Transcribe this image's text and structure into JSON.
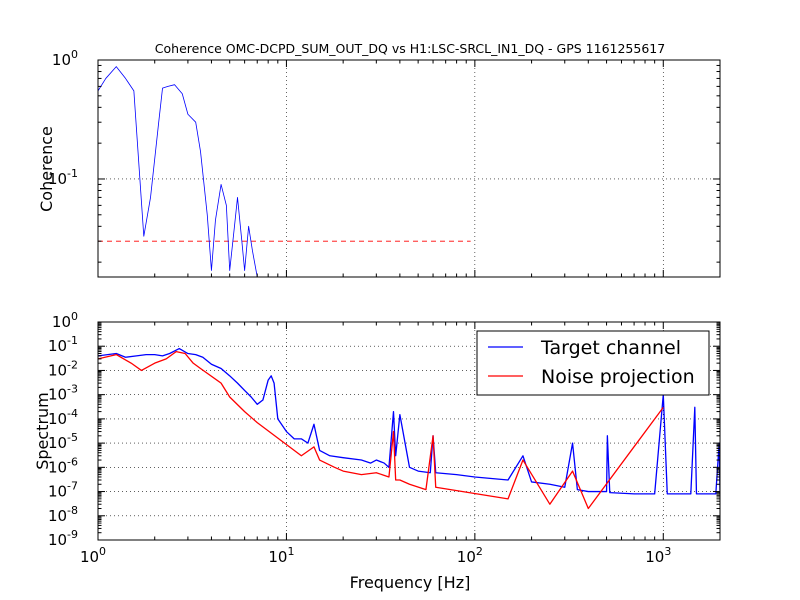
{
  "chart_data": [
    {
      "id": "coherence",
      "type": "line",
      "title": "Coherence OMC-DCPD_SUM_OUT_DQ vs H1:LSC-SRCL_IN1_DQ - GPS 1161255617",
      "xlabel": "",
      "ylabel": "Coherence",
      "xscale": "log",
      "yscale": "log",
      "xlim": [
        1,
        2000
      ],
      "ylim": [
        0.015,
        1
      ],
      "grid": true,
      "yticks": [
        {
          "value": 0.1,
          "base": "10",
          "exp": "-1"
        },
        {
          "value": 1,
          "base": "10",
          "exp": "0"
        }
      ],
      "threshold": {
        "value": 0.03,
        "color": "#ff0000",
        "style": "dashed"
      },
      "series": [
        {
          "color": "#0000ff",
          "points": [
            [
              1.0,
              0.55
            ],
            [
              1.1,
              0.7
            ],
            [
              1.25,
              0.88
            ],
            [
              1.4,
              0.7
            ],
            [
              1.55,
              0.55
            ],
            [
              1.75,
              0.033
            ],
            [
              1.9,
              0.07
            ],
            [
              2.1,
              0.3
            ],
            [
              2.2,
              0.58
            ],
            [
              2.35,
              0.6
            ],
            [
              2.55,
              0.62
            ],
            [
              2.8,
              0.52
            ],
            [
              3.0,
              0.35
            ],
            [
              3.3,
              0.3
            ],
            [
              3.5,
              0.17
            ],
            [
              3.8,
              0.05
            ],
            [
              4.0,
              0.017
            ],
            [
              4.2,
              0.045
            ],
            [
              4.5,
              0.09
            ],
            [
              4.8,
              0.06
            ],
            [
              5.0,
              0.017
            ],
            [
              5.3,
              0.04
            ],
            [
              5.5,
              0.07
            ],
            [
              5.8,
              0.03
            ],
            [
              6.0,
              0.017
            ],
            [
              6.3,
              0.04
            ],
            [
              6.6,
              0.025
            ],
            [
              7.0,
              0.015
            ]
          ]
        }
      ]
    },
    {
      "id": "spectrum",
      "type": "line",
      "title": "",
      "xlabel": "Frequency [Hz]",
      "ylabel": "Spectrum",
      "xscale": "log",
      "yscale": "log",
      "xlim": [
        1,
        2000
      ],
      "ylim": [
        1e-09,
        1
      ],
      "grid": true,
      "legend": "top-right",
      "xticks": [
        {
          "value": 1,
          "base": "10",
          "exp": "0"
        },
        {
          "value": 10,
          "base": "10",
          "exp": "1"
        },
        {
          "value": 100,
          "base": "10",
          "exp": "2"
        },
        {
          "value": 1000,
          "base": "10",
          "exp": "3"
        }
      ],
      "yticks": [
        {
          "value": 1e-09,
          "base": "10",
          "exp": "-9"
        },
        {
          "value": 1e-08,
          "base": "10",
          "exp": "-8"
        },
        {
          "value": 1e-07,
          "base": "10",
          "exp": "-7"
        },
        {
          "value": 1e-06,
          "base": "10",
          "exp": "-6"
        },
        {
          "value": 1e-05,
          "base": "10",
          "exp": "-5"
        },
        {
          "value": 0.0001,
          "base": "10",
          "exp": "-4"
        },
        {
          "value": 0.001,
          "base": "10",
          "exp": "-3"
        },
        {
          "value": 0.01,
          "base": "10",
          "exp": "-2"
        },
        {
          "value": 0.1,
          "base": "10",
          "exp": "-1"
        },
        {
          "value": 1,
          "base": "10",
          "exp": "0"
        }
      ],
      "series": [
        {
          "name": "Target channel",
          "color": "#0000ff",
          "points": [
            [
              1.0,
              0.04
            ],
            [
              1.25,
              0.05
            ],
            [
              1.4,
              0.035
            ],
            [
              1.6,
              0.04
            ],
            [
              1.8,
              0.045
            ],
            [
              2.0,
              0.045
            ],
            [
              2.2,
              0.04
            ],
            [
              2.4,
              0.05
            ],
            [
              2.7,
              0.08
            ],
            [
              3.0,
              0.05
            ],
            [
              3.3,
              0.045
            ],
            [
              3.6,
              0.035
            ],
            [
              4.0,
              0.018
            ],
            [
              4.5,
              0.012
            ],
            [
              5.0,
              0.006
            ],
            [
              5.5,
              0.003
            ],
            [
              6.0,
              0.0015
            ],
            [
              6.5,
              0.0008
            ],
            [
              7.0,
              0.0004
            ],
            [
              7.5,
              0.0006
            ],
            [
              8.0,
              0.004
            ],
            [
              8.3,
              0.006
            ],
            [
              8.6,
              0.003
            ],
            [
              9.0,
              0.0001
            ],
            [
              10.0,
              3e-05
            ],
            [
              11.0,
              1.5e-05
            ],
            [
              12.0,
              1.5e-05
            ],
            [
              13.0,
              1e-05
            ],
            [
              14.0,
              6e-05
            ],
            [
              15.0,
              5e-06
            ],
            [
              17.0,
              3e-06
            ],
            [
              20.0,
              2.5e-06
            ],
            [
              25.0,
              2e-06
            ],
            [
              28.0,
              1.5e-06
            ],
            [
              30.0,
              2e-06
            ],
            [
              33.0,
              1.5e-06
            ],
            [
              35.0,
              1e-06
            ],
            [
              37.0,
              0.0002
            ],
            [
              38.0,
              3e-06
            ],
            [
              40.0,
              0.00015
            ],
            [
              45.0,
              1e-06
            ],
            [
              50.0,
              7e-07
            ],
            [
              58.0,
              6e-07
            ],
            [
              60.0,
              2e-05
            ],
            [
              62.0,
              6e-07
            ],
            [
              80.0,
              5e-07
            ],
            [
              100.0,
              4e-07
            ],
            [
              150.0,
              3e-07
            ],
            [
              180.0,
              3e-06
            ],
            [
              200.0,
              2.5e-07
            ],
            [
              250.0,
              2e-07
            ],
            [
              300.0,
              1.5e-07
            ],
            [
              330.0,
              1e-05
            ],
            [
              350.0,
              1.2e-07
            ],
            [
              400.0,
              1e-07
            ],
            [
              500.0,
              1e-07
            ],
            [
              505.0,
              2e-05
            ],
            [
              520.0,
              9e-08
            ],
            [
              700.0,
              8e-08
            ],
            [
              900.0,
              8e-08
            ],
            [
              1000.0,
              0.001
            ],
            [
              1050.0,
              8e-08
            ],
            [
              1400.0,
              8e-08
            ],
            [
              1470.0,
              0.0003
            ],
            [
              1500.0,
              8e-08
            ],
            [
              1900.0,
              8e-08
            ],
            [
              1980.0,
              1e-05
            ],
            [
              2000.0,
              8e-08
            ]
          ]
        },
        {
          "name": "Noise projection",
          "color": "#ff0000",
          "points": [
            [
              1.0,
              0.03
            ],
            [
              1.25,
              0.045
            ],
            [
              1.5,
              0.02
            ],
            [
              1.7,
              0.01
            ],
            [
              2.0,
              0.02
            ],
            [
              2.3,
              0.03
            ],
            [
              2.6,
              0.06
            ],
            [
              2.9,
              0.05
            ],
            [
              3.2,
              0.02
            ],
            [
              3.5,
              0.012
            ],
            [
              4.5,
              0.003
            ],
            [
              5.0,
              0.0008
            ],
            [
              6.0,
              0.0002
            ],
            [
              7.0,
              7e-05
            ],
            [
              12.0,
              3e-06
            ],
            [
              14.0,
              7e-06
            ],
            [
              15.0,
              2e-06
            ],
            [
              18.0,
              1e-06
            ],
            [
              20.0,
              7e-07
            ],
            [
              25.0,
              5e-07
            ],
            [
              30.0,
              6e-07
            ],
            [
              35.0,
              4e-07
            ],
            [
              37.0,
              3e-05
            ],
            [
              38.0,
              3e-07
            ],
            [
              40.0,
              3e-07
            ],
            [
              45.0,
              2e-07
            ],
            [
              55.0,
              1.2e-07
            ],
            [
              60.0,
              2e-05
            ],
            [
              62.0,
              1.5e-07
            ],
            [
              150.0,
              5e-08
            ],
            [
              180.0,
              2e-06
            ],
            [
              250.0,
              3e-08
            ],
            [
              330.0,
              7e-07
            ],
            [
              400.0,
              2e-08
            ],
            [
              1000.0,
              0.0003
            ]
          ]
        }
      ]
    }
  ]
}
